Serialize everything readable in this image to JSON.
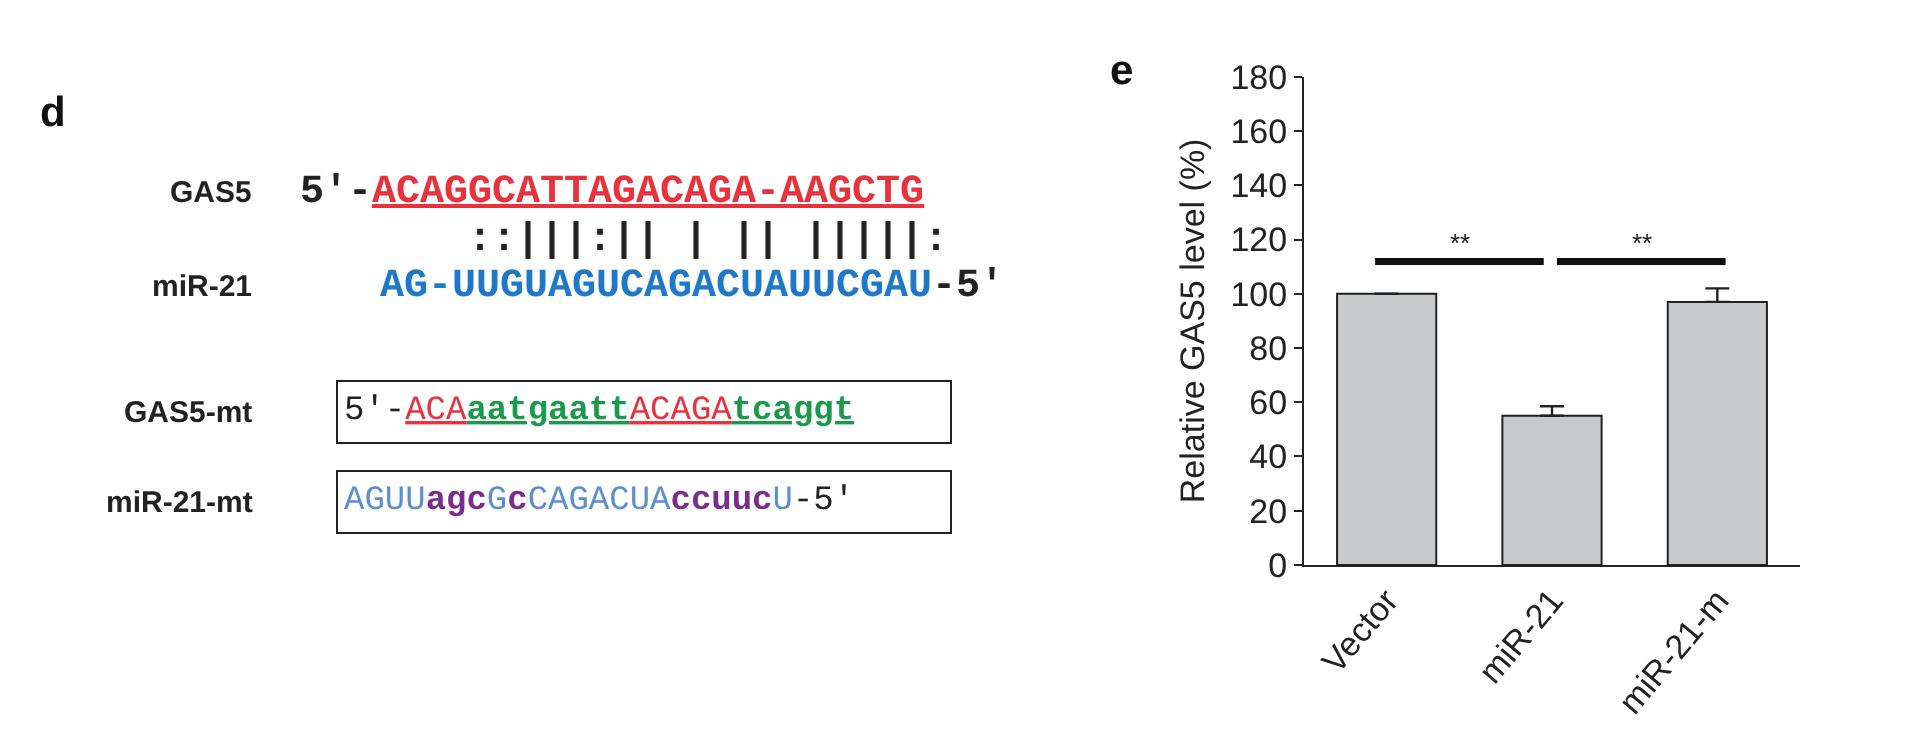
{
  "chart_data": [
    {
      "type": "other",
      "title": "d",
      "annotations": [
        "GAS5",
        "5′-ACAGGCATTAGACAGA-AAGCTG",
        "::|||:|| | || |||||:",
        "miR-21",
        "AG-UUGUAGUCAGACUAUUCGAU-5′",
        "GAS5-mt",
        "5′-ACAaatgaattACAGAtcaggt",
        "miR-21-mt",
        "AGUUagcGcCAGACUAccuucU-5′"
      ]
    },
    {
      "type": "bar",
      "title": "e",
      "categories": [
        "Vector",
        "miR-21",
        "miR-21-m"
      ],
      "values": [
        100,
        55,
        97
      ],
      "errors": [
        null,
        [
          55,
          58.5
        ],
        [
          97,
          102
        ]
      ],
      "color": "#c8c9cb",
      "ylabel": "Relative GAS5 level (%)",
      "ylim": [
        0,
        180
      ],
      "yticks": [
        0,
        20,
        40,
        60,
        80,
        100,
        120,
        140,
        160,
        180
      ],
      "annotations": [
        "**",
        "**"
      ]
    }
  ]
}
